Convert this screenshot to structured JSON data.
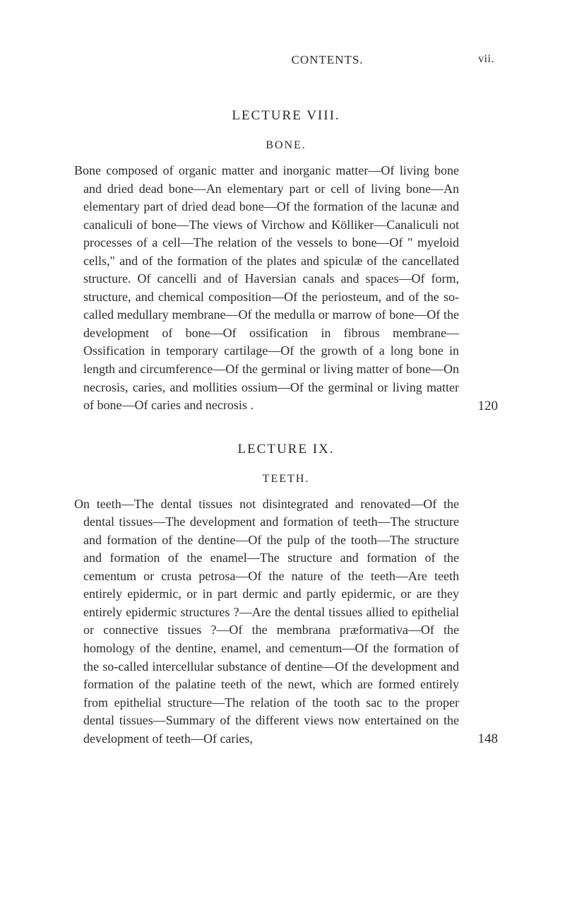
{
  "header": {
    "title": "CONTENTS.",
    "page_roman": "vii."
  },
  "lectures": [
    {
      "title": "LECTURE VIII.",
      "subtitle": "BONE.",
      "text": "Bone composed of organic matter and inorganic matter—Of living bone and dried dead bone—An elementary part or cell of living bone—An elementary part of dried dead bone—Of the formation of the lacunæ and canaliculi of bone—The views of Virchow and Kölliker—Canaliculi not processes of a cell—The relation of the vessels to bone—Of \" myeloid cells,\" and of the formation of the plates and spiculæ of the cancellated structure. Of cancelli and of Haversian canals and spaces—Of form, structure, and chemical composition—Of the periosteum, and of the so-called medullary membrane—Of the medulla or marrow of bone—Of the development of bone—Of ossification in fibrous membrane—Ossification in temporary cartilage—Of the growth of a long bone in length and circumference—Of the germinal or living matter of bone—On necrosis, caries, and mollities ossium—Of the germinal or living matter of bone—Of caries and necrosis .",
      "page": "120"
    },
    {
      "title": "LECTURE IX.",
      "subtitle": "TEETH.",
      "text": "On teeth—The dental tissues not disintegrated and renovated—Of the dental tissues—The development and formation of teeth—The structure and formation of the dentine—Of the pulp of the tooth—The structure and formation of the enamel—The structure and formation of the cementum or crusta petrosa—Of the nature of the teeth—Are teeth entirely epidermic, or in part dermic and partly epidermic, or are they entirely epidermic structures ?—Are the dental tissues allied to epithelial or connective tissues ?—Of the membrana præformativa—Of the homology of the dentine, enamel, and cementum—Of the formation of the so-called intercellular substance of dentine—Of the development and formation of the palatine teeth of the newt, which are formed entirely from epithelial structure—The relation of the tooth sac to the proper dental tissues—Summary of the different views now entertained on the development of teeth—Of caries,",
      "page": "148"
    }
  ]
}
